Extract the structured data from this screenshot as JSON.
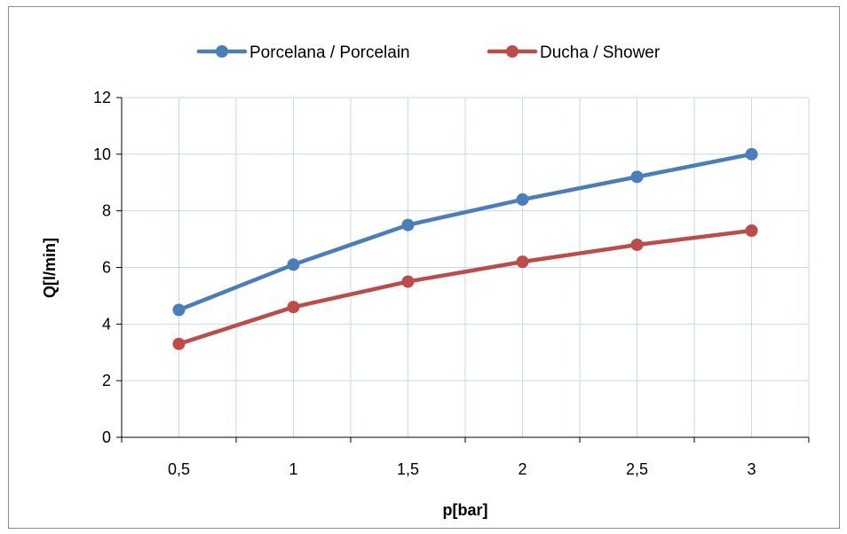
{
  "chart_data": {
    "type": "line",
    "categories": [
      "0,5",
      "1",
      "1,5",
      "2",
      "2,5",
      "3"
    ],
    "series": [
      {
        "name": "Porcelana / Porcelain",
        "values": [
          4.5,
          6.1,
          7.5,
          8.4,
          9.2,
          10.0
        ],
        "color": "#4a7ebb"
      },
      {
        "name": "Ducha / Shower",
        "values": [
          3.3,
          4.6,
          5.5,
          6.2,
          6.8,
          7.3
        ],
        "color": "#be4b48"
      }
    ],
    "xlabel": "p[bar]",
    "ylabel": "Q[l/min]",
    "ylim": [
      0,
      12
    ],
    "yticks": [
      "0",
      "2",
      "4",
      "6",
      "8",
      "10",
      "12"
    ],
    "grid": true,
    "gridColor": "#c6d9f1",
    "legend": "top-center"
  }
}
